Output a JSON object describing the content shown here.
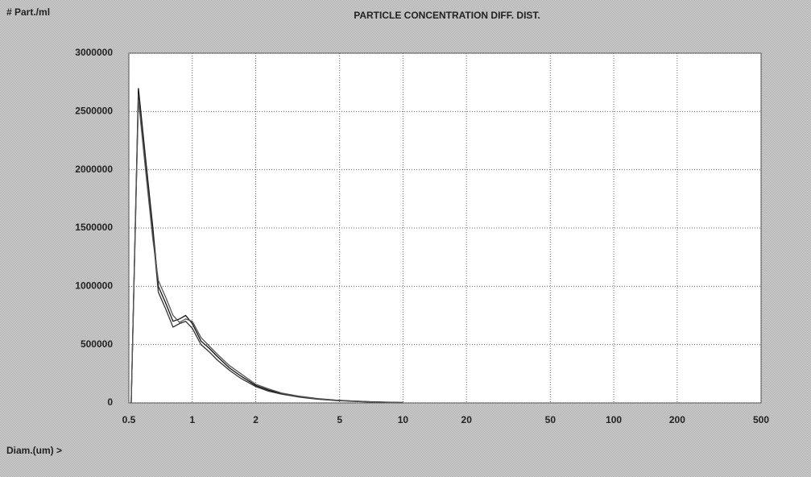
{
  "chart_data": {
    "type": "line",
    "title": "PARTICLE CONCENTRATION DIFF. DIST.",
    "y_label": "# Part./ml",
    "x_label": "Diam.(um) >",
    "x": [
      0.513,
      0.555,
      0.6,
      0.65,
      0.69,
      0.75,
      0.81,
      0.87,
      0.93,
      1.0,
      1.1,
      1.2,
      1.31,
      1.5,
      1.7,
      2.0,
      2.3,
      2.65,
      3.2,
      3.9,
      4.8,
      5.8,
      7.0,
      8.7,
      10
    ],
    "series": [
      {
        "color": "#111111",
        "values": [
          0,
          2700000,
          2100000,
          1500000,
          1000000,
          850000,
          700000,
          720000,
          750000,
          680000,
          530000,
          470000,
          400000,
          300000,
          230000,
          150000,
          110000,
          80000,
          55000,
          35000,
          22000,
          15000,
          9000,
          5000,
          3000
        ]
      },
      {
        "color": "#333333",
        "values": [
          0,
          2650000,
          2050000,
          1450000,
          950000,
          800000,
          650000,
          680000,
          700000,
          640000,
          500000,
          440000,
          370000,
          280000,
          210000,
          140000,
          100000,
          75000,
          50000,
          32000,
          20000,
          13000,
          8000,
          4500,
          2500
        ]
      },
      {
        "color": "#555555",
        "values": [
          0,
          2600000,
          2000000,
          1400000,
          1050000,
          900000,
          750000,
          690000,
          720000,
          700000,
          560000,
          490000,
          420000,
          320000,
          250000,
          160000,
          120000,
          85000,
          58000,
          38000,
          24000,
          16000,
          10000,
          5500,
          3200
        ]
      }
    ],
    "xlim": [
      0.5,
      500
    ],
    "xticks": [
      0.5,
      1,
      2,
      5,
      10,
      20,
      50,
      100,
      200,
      500
    ],
    "xscale": "log",
    "ylim": [
      0,
      3000000
    ],
    "yticks": [
      0,
      500000,
      1000000,
      1500000,
      2000000,
      2500000,
      3000000
    ],
    "grid": true
  }
}
